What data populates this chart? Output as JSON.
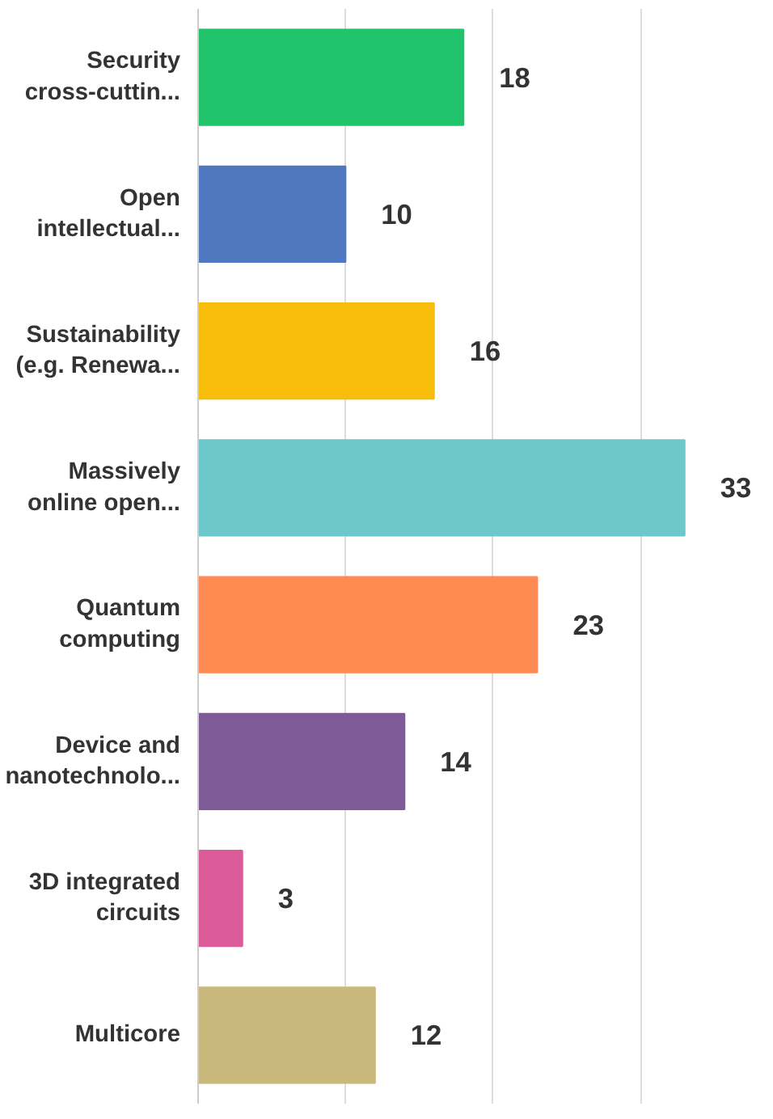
{
  "chart_data": {
    "type": "bar",
    "orientation": "horizontal",
    "categories": [
      "Security\ncross-cuttin...",
      "Open\nintellectual...",
      "Sustainability\n(e.g. Renewa...",
      "Massively\nonline open...",
      "Quantum\ncomputing",
      "Device and\nnanotechnolo...",
      "3D integrated\ncircuits",
      "Multicore"
    ],
    "values": [
      18,
      10,
      16,
      33,
      23,
      14,
      3,
      12
    ],
    "colors": [
      "#21c46b",
      "#4f78c0",
      "#f8bd0a",
      "#6cc8cb",
      "#ff8a52",
      "#7e5b96",
      "#db5c99",
      "#c9b87b"
    ],
    "xticks": [
      {
        "value": 0,
        "label": null
      },
      {
        "value": 10,
        "label": null
      },
      {
        "value": 20,
        "label": null
      },
      {
        "value": 30,
        "label": null
      }
    ],
    "grid": "x",
    "data_labels": true,
    "tick_labels": "y"
  }
}
